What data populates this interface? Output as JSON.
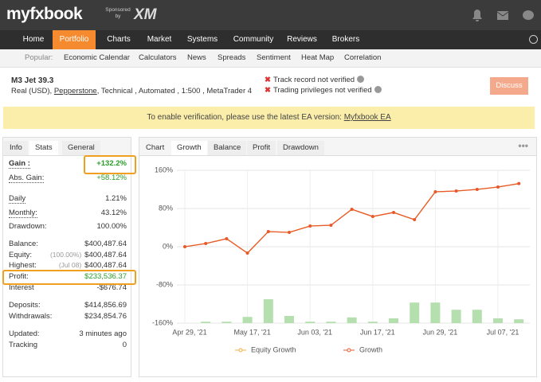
{
  "header": {
    "logo": "myfxbook",
    "sponsor": "Sponsored by",
    "sponsor_brand": "XM"
  },
  "nav": [
    "Home",
    "Portfolio",
    "Charts",
    "Market",
    "Systems",
    "Community",
    "Reviews",
    "Brokers"
  ],
  "subnav": {
    "label": "Popular:",
    "items": [
      "Economic Calendar",
      "Calculators",
      "News",
      "Spreads",
      "Sentiment",
      "Heat Map",
      "Correlation"
    ]
  },
  "account": {
    "title": "M3 Jet 39.3",
    "info_prefix": "Real (USD),",
    "broker": "Pepperstone",
    "info_suffix": ", Technical , Automated , 1:500 , MetaTrader 4",
    "warnings": [
      "Track record not verified",
      "Trading privileges not verified"
    ],
    "button": "Discuss"
  },
  "banner": {
    "text": "To enable verification, please use the latest EA version:",
    "link": "Myfxbook EA"
  },
  "stats": {
    "tabs": [
      "Info",
      "Stats",
      "General"
    ],
    "rows": [
      {
        "label": "Gain :",
        "value": "+132.2%"
      },
      {
        "label": "Abs. Gain:",
        "value": "+58.12%"
      },
      {
        "label": "Daily",
        "value": "1.21%"
      },
      {
        "label": "Monthly:",
        "value": "43.12%"
      },
      {
        "label": "Drawdown:",
        "value": "100.00%"
      },
      {
        "label": "Balance:",
        "value": "$400,487.64"
      },
      {
        "label": "Equity:",
        "note": "(100.00%)",
        "value": "$400,487.64"
      },
      {
        "label": "Highest:",
        "note": "(Jul 08)",
        "value": "$400,487.64"
      },
      {
        "label": "Profit:",
        "value": "$233,536.37"
      },
      {
        "label": "Interest",
        "value": "-$676.74"
      },
      {
        "label": "Deposits:",
        "value": "$414,856.69"
      },
      {
        "label": "Withdrawals:",
        "value": "$234,854.76"
      },
      {
        "label": "Updated:",
        "value": "3 minutes ago"
      },
      {
        "label": "Tracking",
        "value": "0"
      }
    ]
  },
  "chart_tabs": [
    "Chart",
    "Growth",
    "Balance",
    "Profit",
    "Drawdown"
  ],
  "chart": {
    "type": "line",
    "categories": [
      "Apr 29, '21",
      null,
      null,
      "May 17, '21",
      null,
      null,
      "Jun 03, '21",
      null,
      null,
      "Jun 17, '21",
      null,
      null,
      "Jun 29, '21",
      null,
      null,
      "Jul 07, '21",
      null
    ],
    "series": [
      {
        "name": "Equity Growth",
        "color": "#f5b041",
        "values": [
          0,
          6.7,
          16.7,
          -13.3,
          31.7,
          30,
          43.3,
          45,
          78.3,
          63.3,
          71.7,
          56.7,
          115,
          116.7,
          120,
          125,
          132.2
        ]
      },
      {
        "name": "Growth",
        "color": "#e8582a",
        "values": [
          0,
          6.7,
          16.7,
          -13.3,
          31.7,
          30,
          43.3,
          45,
          78.3,
          63.3,
          71.7,
          56.7,
          115,
          116.7,
          120,
          125,
          132.2
        ]
      }
    ],
    "bars": {
      "color": "#b5dfae",
      "values": [
        null,
        -157,
        -157,
        -147,
        -110,
        -145,
        -157,
        -157,
        -148,
        -157,
        -150,
        -117,
        -117,
        -132,
        -132,
        -150,
        -152
      ]
    },
    "ylim": [
      -160,
      160
    ],
    "yticks": [
      {
        "value": -160,
        "label": "-160%"
      },
      {
        "value": -80,
        "label": "-80%"
      },
      {
        "value": 0,
        "label": "0%"
      },
      {
        "value": 80,
        "label": "80%"
      },
      {
        "value": 160,
        "label": "160%"
      }
    ],
    "grid": true
  }
}
